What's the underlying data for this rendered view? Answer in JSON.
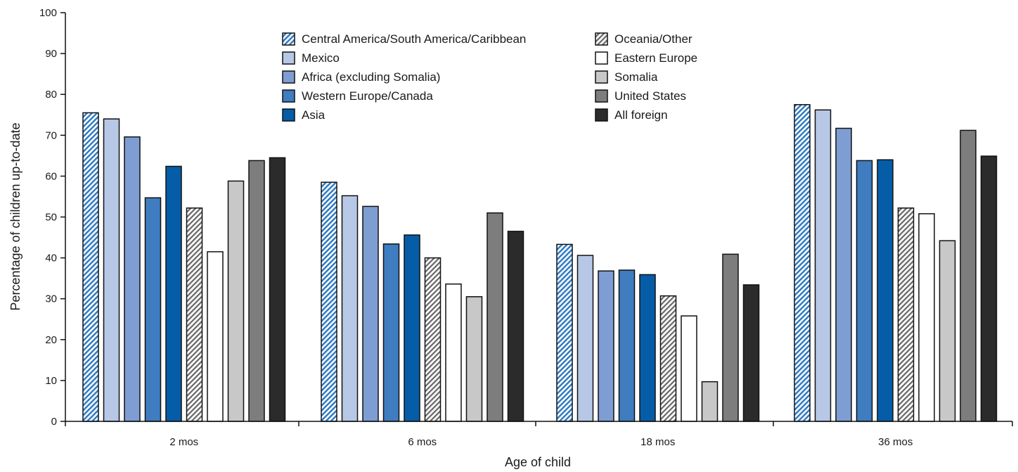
{
  "chart_data": {
    "type": "bar",
    "categories": [
      "2 mos",
      "6 mos",
      "18 mos",
      "36 mos"
    ],
    "xlabel": "Age of child",
    "ylabel": "Percentage of children up-to-date",
    "ylim": [
      0,
      100
    ],
    "yticks": [
      0,
      10,
      20,
      30,
      40,
      50,
      60,
      70,
      80,
      90,
      100
    ],
    "grid": false,
    "legend_position": "top",
    "series": [
      {
        "name": "Central America/South America/Caribbean",
        "values": [
          75.5,
          58.5,
          43.3,
          77.5
        ],
        "color": "#2a78c2",
        "pattern": "diagonal-blue-hatch"
      },
      {
        "name": "Mexico",
        "values": [
          74.0,
          55.2,
          40.6,
          76.2
        ],
        "color": "#b7c7e6",
        "pattern": "solid"
      },
      {
        "name": "Africa (excluding Somalia)",
        "values": [
          69.6,
          52.6,
          36.8,
          71.7
        ],
        "color": "#7e9dd2",
        "pattern": "solid"
      },
      {
        "name": "Western Europe/Canada",
        "values": [
          54.7,
          43.4,
          37.0,
          63.8
        ],
        "color": "#3f7cc0",
        "pattern": "solid"
      },
      {
        "name": "Asia",
        "values": [
          62.4,
          45.6,
          35.9,
          64.0
        ],
        "color": "#055da8",
        "pattern": "solid"
      },
      {
        "name": "Oceania/Other",
        "values": [
          52.2,
          40.0,
          30.7,
          52.2
        ],
        "color": "#666666",
        "pattern": "diagonal-gray-hatch"
      },
      {
        "name": "Eastern Europe",
        "values": [
          41.5,
          33.6,
          25.8,
          50.8
        ],
        "color": "#ffffff",
        "pattern": "solid"
      },
      {
        "name": "Somalia",
        "values": [
          58.8,
          30.5,
          9.7,
          44.2
        ],
        "color": "#c8c8c8",
        "pattern": "solid"
      },
      {
        "name": "United States",
        "values": [
          63.8,
          51.0,
          40.9,
          71.2
        ],
        "color": "#7d7d7d",
        "pattern": "solid"
      },
      {
        "name": "All foreign",
        "values": [
          64.5,
          46.5,
          33.4,
          64.9
        ],
        "color": "#2b2b2b",
        "pattern": "solid"
      }
    ]
  }
}
